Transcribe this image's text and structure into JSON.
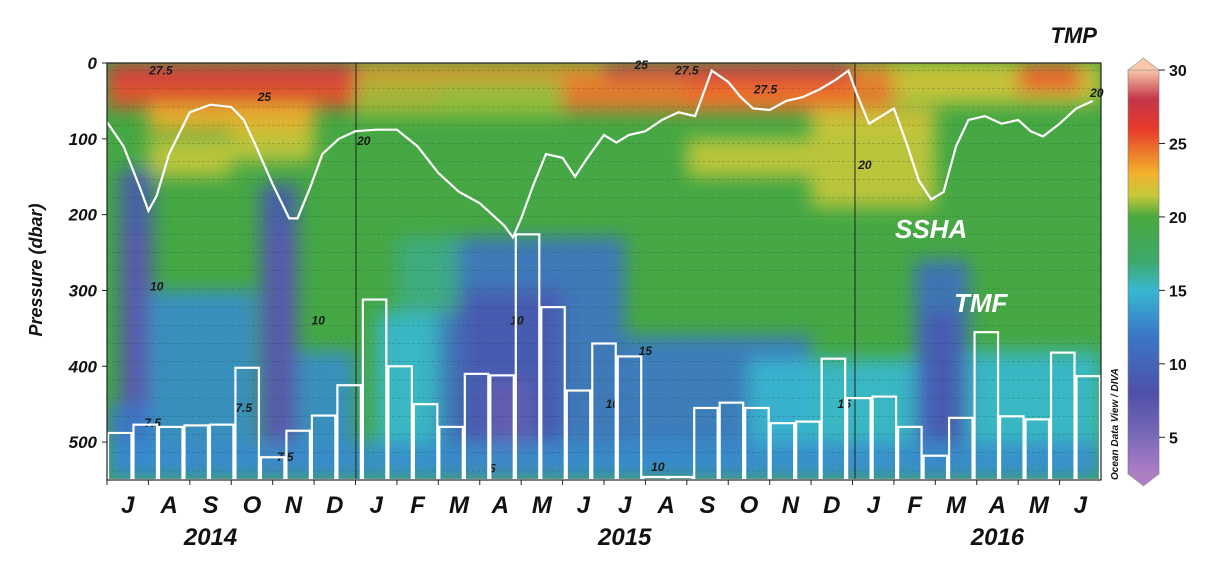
{
  "chart_data": {
    "type": "heatmap",
    "title": "TMP",
    "ylabel": "Pressure (dbar)",
    "ylim": [
      550,
      0
    ],
    "y_ticks": [
      "0",
      "100",
      "200",
      "300",
      "400",
      "500"
    ],
    "month_labels": [
      "J",
      "A",
      "S",
      "O",
      "N",
      "D",
      "J",
      "F",
      "M",
      "A",
      "M",
      "J",
      "J",
      "A",
      "S",
      "O",
      "N",
      "D",
      "J",
      "F",
      "M",
      "A",
      "M",
      "J"
    ],
    "year_labels": [
      "2014",
      "2015",
      "2016"
    ],
    "colorbar": {
      "range": [
        2.5,
        30
      ],
      "ticks": [
        "5",
        "10",
        "15",
        "20",
        "25",
        "30"
      ],
      "stops": [
        {
          "v": 2.5,
          "color": "#b07ec8"
        },
        {
          "v": 5,
          "color": "#7b6ab8"
        },
        {
          "v": 8,
          "color": "#4e50a8"
        },
        {
          "v": 12,
          "color": "#3a78c8"
        },
        {
          "v": 15,
          "color": "#38b8d0"
        },
        {
          "v": 17,
          "color": "#3ea86a"
        },
        {
          "v": 20,
          "color": "#49a93d"
        },
        {
          "v": 21.5,
          "color": "#c8c83a"
        },
        {
          "v": 23,
          "color": "#f3b12d"
        },
        {
          "v": 26,
          "color": "#e63a2b"
        },
        {
          "v": 28,
          "color": "#c4354a"
        },
        {
          "v": 30,
          "color": "#f8c8a8"
        }
      ]
    },
    "contour_labels": [
      {
        "text": "27.5",
        "x": 0.8,
        "y": 15
      },
      {
        "text": "25",
        "x": 3.3,
        "y": 50
      },
      {
        "text": "20",
        "x": 5.7,
        "y": 108
      },
      {
        "text": "10",
        "x": 0.7,
        "y": 300
      },
      {
        "text": "10",
        "x": 4.6,
        "y": 345
      },
      {
        "text": "7.5",
        "x": 0.6,
        "y": 480
      },
      {
        "text": "7.5",
        "x": 2.8,
        "y": 460
      },
      {
        "text": "7.5",
        "x": 3.8,
        "y": 525
      },
      {
        "text": "25",
        "x": 12.4,
        "y": 8
      },
      {
        "text": "27.5",
        "x": 13.5,
        "y": 15
      },
      {
        "text": "27.5",
        "x": 15.4,
        "y": 40
      },
      {
        "text": "20",
        "x": 17.8,
        "y": 140
      },
      {
        "text": "20",
        "x": 23.4,
        "y": 45
      },
      {
        "text": "10",
        "x": 9.4,
        "y": 345
      },
      {
        "text": "10",
        "x": 11.7,
        "y": 455
      },
      {
        "text": "15",
        "x": 12.5,
        "y": 385
      },
      {
        "text": "15",
        "x": 17.3,
        "y": 455
      },
      {
        "text": "10",
        "x": 12.8,
        "y": 538
      },
      {
        "text": "5",
        "x": 8.8,
        "y": 540
      }
    ],
    "series": [
      {
        "name": "SSHA",
        "type": "line",
        "x": [
          0,
          0.4,
          0.8,
          1.0,
          1.2,
          1.5,
          2.0,
          2.5,
          3.0,
          3.3,
          3.6,
          4.0,
          4.4,
          4.6,
          4.9,
          5.2,
          5.6,
          6.0,
          6.5,
          7.0,
          7.5,
          8.0,
          8.5,
          9.0,
          9.3,
          9.6,
          9.8,
          10.0,
          10.3,
          10.6,
          11.0,
          11.3,
          11.6,
          12.0,
          12.3,
          12.6,
          13.0,
          13.4,
          13.8,
          14.2,
          14.6,
          15.0,
          15.3,
          15.6,
          16.0,
          16.4,
          16.8,
          17.2,
          17.6,
          17.9,
          18.1,
          18.4,
          18.7,
          19.0,
          19.3,
          19.6,
          19.9,
          20.2,
          20.5,
          20.8,
          21.2,
          21.6,
          22.0,
          22.3,
          22.6,
          23.0,
          23.4,
          23.8
        ],
        "y": [
          78,
          110,
          165,
          195,
          175,
          120,
          65,
          55,
          58,
          75,
          110,
          160,
          205,
          205,
          165,
          120,
          100,
          90,
          88,
          88,
          110,
          145,
          170,
          185,
          200,
          215,
          230,
          205,
          160,
          120,
          125,
          150,
          125,
          95,
          105,
          95,
          90,
          75,
          65,
          70,
          10,
          25,
          45,
          60,
          62,
          50,
          45,
          35,
          22,
          10,
          40,
          80,
          70,
          60,
          105,
          155,
          180,
          170,
          110,
          75,
          70,
          80,
          75,
          90,
          97,
          80,
          60,
          50
        ]
      },
      {
        "name": "TMF",
        "type": "bar",
        "values": [
          488,
          477,
          480,
          478,
          477,
          402,
          520,
          485,
          465,
          425,
          312,
          400,
          450,
          480,
          410,
          412,
          226,
          322,
          432,
          370,
          387,
          546,
          546,
          455,
          448,
          455,
          475,
          473,
          390,
          442,
          440,
          480,
          518,
          468,
          355,
          466,
          470,
          382,
          413
        ]
      }
    ]
  }
}
